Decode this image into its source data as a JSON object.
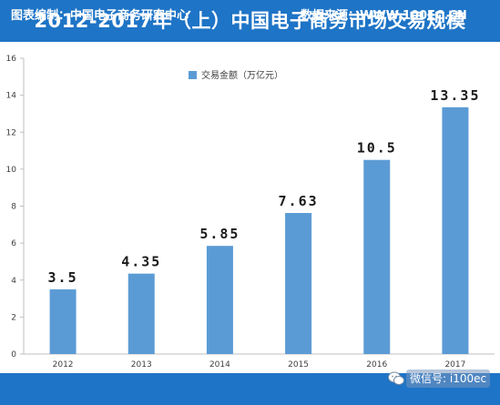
{
  "title": "2012-2017年（上）中国电子商务市场交易规模",
  "footer": {
    "left": "图表编制：中国电子商务研究中心",
    "right": "数据来源：WWW.100EC.CN"
  },
  "watermark": "微信号: i100ec",
  "icons": {
    "watermark": "wechat-icon"
  },
  "colors": {
    "accent": "#1e74c6",
    "bar": "#5b9bd5"
  },
  "chart_data": {
    "type": "bar",
    "categories": [
      "2012",
      "2013",
      "2014",
      "2015",
      "2016",
      "2017"
    ],
    "values": [
      3.5,
      4.35,
      5.85,
      7.63,
      10.5,
      13.35
    ],
    "value_labels": [
      "3.5",
      "4.35",
      "5.85",
      "7.63",
      "10.5",
      "13.35"
    ],
    "series": [
      {
        "name": "交易金额（万亿元）",
        "values": [
          3.5,
          4.35,
          5.85,
          7.63,
          10.5,
          13.35
        ]
      }
    ],
    "ylim": [
      0,
      16
    ],
    "yticks": [
      0,
      2,
      4,
      6,
      8,
      10,
      12,
      14,
      16
    ],
    "grid": false,
    "legend": "top-center"
  }
}
